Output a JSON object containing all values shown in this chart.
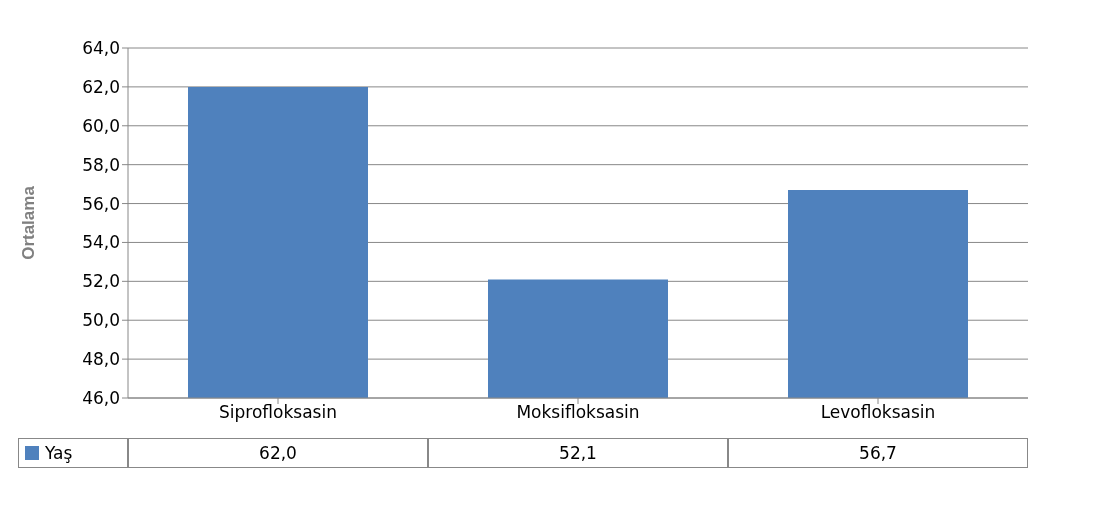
{
  "chart_data": {
    "type": "bar",
    "ylabel": "Ortalama",
    "categories": [
      "Siprofloksasin",
      "Moksifloksasin",
      "Levofloksasin"
    ],
    "series": [
      {
        "name": "Yaş",
        "color": "#4f81bd",
        "values": [
          62.0,
          52.1,
          56.7
        ],
        "value_labels": [
          "62,0",
          "52,1",
          "56,7"
        ]
      }
    ],
    "ylim": [
      46,
      64
    ],
    "yticks": [
      {
        "value": 46,
        "label": "46,0"
      },
      {
        "value": 48,
        "label": "48,0"
      },
      {
        "value": 50,
        "label": "50,0"
      },
      {
        "value": 52,
        "label": "52,0"
      },
      {
        "value": 54,
        "label": "54,0"
      },
      {
        "value": 56,
        "label": "56,0"
      },
      {
        "value": 58,
        "label": "58,0"
      },
      {
        "value": 60,
        "label": "60,0"
      },
      {
        "value": 62,
        "label": "62,0"
      },
      {
        "value": 64,
        "label": "64,0"
      }
    ],
    "grid": "y",
    "legend": "bottom left"
  }
}
